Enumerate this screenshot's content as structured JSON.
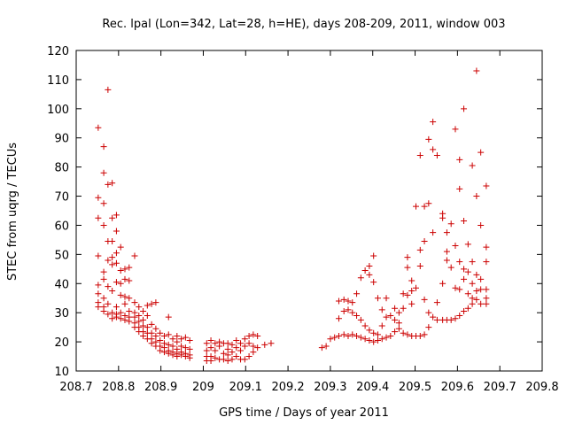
{
  "chart_data": {
    "type": "scatter",
    "title": "Rec. lpal (Lon=342, Lat=28, h=HE), days 208-209, 2011, window 003",
    "xlabel": "GPS time / Days of year 2011",
    "ylabel": "STEC from uqrg / TECUs",
    "xlim": [
      208.7,
      209.8
    ],
    "ylim": [
      10,
      120
    ],
    "xticks": [
      208.7,
      208.8,
      208.9,
      209,
      209.1,
      209.2,
      209.3,
      209.4,
      209.5,
      209.6,
      209.7,
      209.8
    ],
    "xtick_labels": [
      "208.7",
      "208.8",
      "208.9",
      "209",
      "209.1",
      "209.2",
      "209.3",
      "209.4",
      "209.5",
      "209.6",
      "209.7",
      "209.8"
    ],
    "yticks": [
      10,
      20,
      30,
      40,
      50,
      60,
      70,
      80,
      90,
      100,
      110,
      120
    ],
    "ytick_labels": [
      "10",
      "20",
      "30",
      "40",
      "50",
      "60",
      "70",
      "80",
      "90",
      "100",
      "110",
      "120"
    ],
    "grid": false,
    "marker": "+",
    "color": "#cc0000",
    "points": [
      [
        208.752,
        93.5
      ],
      [
        208.752,
        69.5
      ],
      [
        208.752,
        62.5
      ],
      [
        208.752,
        49.5
      ],
      [
        208.752,
        39.5
      ],
      [
        208.752,
        36.5
      ],
      [
        208.752,
        33.5
      ],
      [
        208.752,
        32.0
      ],
      [
        208.765,
        87.0
      ],
      [
        208.765,
        78.0
      ],
      [
        208.765,
        67.5
      ],
      [
        208.765,
        60.0
      ],
      [
        208.765,
        44.0
      ],
      [
        208.765,
        41.5
      ],
      [
        208.765,
        35.0
      ],
      [
        208.765,
        32.0
      ],
      [
        208.765,
        30.5
      ],
      [
        208.775,
        106.5
      ],
      [
        208.775,
        74.0
      ],
      [
        208.775,
        54.5
      ],
      [
        208.775,
        48.0
      ],
      [
        208.775,
        39.0
      ],
      [
        208.775,
        33.0
      ],
      [
        208.775,
        29.5
      ],
      [
        208.785,
        74.5
      ],
      [
        208.785,
        62.5
      ],
      [
        208.785,
        54.5
      ],
      [
        208.785,
        49.0
      ],
      [
        208.785,
        46.5
      ],
      [
        208.785,
        37.5
      ],
      [
        208.785,
        30.0
      ],
      [
        208.785,
        28.0
      ],
      [
        208.795,
        63.5
      ],
      [
        208.795,
        58.0
      ],
      [
        208.795,
        50.5
      ],
      [
        208.795,
        47.0
      ],
      [
        208.795,
        40.5
      ],
      [
        208.795,
        32.0
      ],
      [
        208.795,
        29.5
      ],
      [
        208.795,
        28.5
      ],
      [
        208.805,
        52.5
      ],
      [
        208.805,
        44.5
      ],
      [
        208.805,
        40.0
      ],
      [
        208.805,
        36.0
      ],
      [
        208.805,
        30.0
      ],
      [
        208.805,
        28.0
      ],
      [
        208.815,
        45.0
      ],
      [
        208.815,
        41.5
      ],
      [
        208.815,
        35.5
      ],
      [
        208.815,
        33.0
      ],
      [
        208.815,
        29.0
      ],
      [
        208.815,
        27.5
      ],
      [
        208.825,
        45.5
      ],
      [
        208.825,
        41.0
      ],
      [
        208.825,
        35.0
      ],
      [
        208.825,
        30.5
      ],
      [
        208.825,
        28.5
      ],
      [
        208.825,
        27.0
      ],
      [
        208.838,
        49.5
      ],
      [
        208.838,
        33.5
      ],
      [
        208.838,
        30.0
      ],
      [
        208.838,
        28.5
      ],
      [
        208.838,
        26.5
      ],
      [
        208.838,
        25.0
      ],
      [
        208.848,
        32.0
      ],
      [
        208.848,
        29.0
      ],
      [
        208.848,
        27.0
      ],
      [
        208.848,
        25.0
      ],
      [
        208.848,
        23.5
      ],
      [
        208.858,
        30.5
      ],
      [
        208.858,
        27.5
      ],
      [
        208.858,
        25.5
      ],
      [
        208.858,
        23.5
      ],
      [
        208.858,
        22.0
      ],
      [
        208.868,
        32.5
      ],
      [
        208.868,
        29.0
      ],
      [
        208.868,
        25.0
      ],
      [
        208.868,
        23.0
      ],
      [
        208.868,
        21.0
      ],
      [
        208.878,
        33.0
      ],
      [
        208.878,
        26.0
      ],
      [
        208.878,
        23.0
      ],
      [
        208.878,
        21.0
      ],
      [
        208.878,
        19.5
      ],
      [
        208.888,
        33.5
      ],
      [
        208.888,
        24.5
      ],
      [
        208.888,
        22.0
      ],
      [
        208.888,
        20.0
      ],
      [
        208.888,
        18.5
      ],
      [
        208.898,
        23.0
      ],
      [
        208.898,
        20.5
      ],
      [
        208.898,
        18.5
      ],
      [
        208.898,
        17.0
      ],
      [
        208.908,
        22.0
      ],
      [
        208.908,
        19.5
      ],
      [
        208.908,
        18.0
      ],
      [
        208.908,
        16.5
      ],
      [
        208.918,
        28.5
      ],
      [
        208.918,
        22.5
      ],
      [
        208.918,
        19.0
      ],
      [
        208.918,
        17.0
      ],
      [
        208.918,
        16.0
      ],
      [
        208.928,
        21.0
      ],
      [
        208.928,
        18.5
      ],
      [
        208.928,
        16.5
      ],
      [
        208.928,
        15.5
      ],
      [
        208.938,
        22.0
      ],
      [
        208.938,
        20.0
      ],
      [
        208.938,
        17.5
      ],
      [
        208.938,
        16.0
      ],
      [
        208.938,
        15.0
      ],
      [
        208.948,
        21.0
      ],
      [
        208.948,
        18.5
      ],
      [
        208.948,
        16.5
      ],
      [
        208.948,
        15.5
      ],
      [
        208.958,
        21.5
      ],
      [
        208.958,
        18.0
      ],
      [
        208.958,
        16.0
      ],
      [
        208.958,
        15.0
      ],
      [
        208.968,
        20.5
      ],
      [
        208.968,
        17.5
      ],
      [
        208.968,
        15.5
      ],
      [
        208.968,
        14.5
      ],
      [
        209.008,
        19.5
      ],
      [
        209.008,
        17.0
      ],
      [
        209.008,
        15.0
      ],
      [
        209.008,
        13.5
      ],
      [
        209.018,
        20.5
      ],
      [
        209.018,
        18.0
      ],
      [
        209.018,
        15.0
      ],
      [
        209.018,
        13.5
      ],
      [
        209.028,
        19.5
      ],
      [
        209.028,
        17.0
      ],
      [
        209.028,
        14.5
      ],
      [
        209.038,
        20.0
      ],
      [
        209.038,
        18.5
      ],
      [
        209.038,
        14.0
      ],
      [
        209.048,
        19.5
      ],
      [
        209.048,
        16.0
      ],
      [
        209.048,
        14.0
      ],
      [
        209.058,
        19.5
      ],
      [
        209.058,
        17.5
      ],
      [
        209.058,
        15.5
      ],
      [
        209.058,
        13.5
      ],
      [
        209.068,
        19.0
      ],
      [
        209.068,
        16.5
      ],
      [
        209.068,
        14.0
      ],
      [
        209.078,
        20.5
      ],
      [
        209.078,
        18.0
      ],
      [
        209.078,
        15.0
      ],
      [
        209.088,
        19.5
      ],
      [
        209.088,
        17.0
      ],
      [
        209.088,
        14.0
      ],
      [
        209.098,
        21.0
      ],
      [
        209.098,
        18.5
      ],
      [
        209.098,
        14.0
      ],
      [
        209.108,
        22.0
      ],
      [
        209.108,
        19.5
      ],
      [
        209.108,
        15.0
      ],
      [
        209.118,
        22.5
      ],
      [
        209.118,
        18.5
      ],
      [
        209.118,
        16.5
      ],
      [
        209.128,
        22.0
      ],
      [
        209.128,
        18.0
      ],
      [
        209.145,
        19.0
      ],
      [
        209.16,
        19.5
      ],
      [
        209.28,
        18.0
      ],
      [
        209.29,
        18.5
      ],
      [
        209.3,
        21.0
      ],
      [
        209.31,
        21.5
      ],
      [
        209.32,
        22.0
      ],
      [
        209.32,
        28.0
      ],
      [
        209.32,
        34.0
      ],
      [
        209.332,
        22.5
      ],
      [
        209.332,
        30.5
      ],
      [
        209.332,
        34.5
      ],
      [
        209.342,
        22.0
      ],
      [
        209.342,
        31.0
      ],
      [
        209.342,
        34.0
      ],
      [
        209.352,
        22.5
      ],
      [
        209.352,
        30.0
      ],
      [
        209.352,
        33.5
      ],
      [
        209.362,
        22.0
      ],
      [
        209.362,
        29.0
      ],
      [
        209.362,
        36.5
      ],
      [
        209.372,
        21.5
      ],
      [
        209.372,
        27.5
      ],
      [
        209.372,
        42.0
      ],
      [
        209.382,
        21.0
      ],
      [
        209.382,
        25.5
      ],
      [
        209.382,
        44.5
      ],
      [
        209.392,
        20.5
      ],
      [
        209.392,
        24.0
      ],
      [
        209.392,
        46.0
      ],
      [
        209.392,
        43.0
      ],
      [
        209.402,
        20.0
      ],
      [
        209.402,
        23.0
      ],
      [
        209.402,
        40.5
      ],
      [
        209.402,
        49.5
      ],
      [
        209.412,
        20.5
      ],
      [
        209.412,
        22.5
      ],
      [
        209.412,
        35.0
      ],
      [
        209.422,
        21.0
      ],
      [
        209.422,
        25.5
      ],
      [
        209.422,
        31.0
      ],
      [
        209.432,
        21.5
      ],
      [
        209.432,
        28.5
      ],
      [
        209.432,
        35.0
      ],
      [
        209.442,
        22.0
      ],
      [
        209.442,
        29.0
      ],
      [
        209.452,
        23.5
      ],
      [
        209.452,
        27.5
      ],
      [
        209.452,
        31.5
      ],
      [
        209.462,
        24.5
      ],
      [
        209.462,
        26.5
      ],
      [
        209.462,
        30.0
      ],
      [
        209.472,
        23.0
      ],
      [
        209.472,
        31.5
      ],
      [
        209.472,
        36.5
      ],
      [
        209.482,
        22.5
      ],
      [
        209.482,
        36.0
      ],
      [
        209.482,
        45.5
      ],
      [
        209.482,
        49.0
      ],
      [
        209.492,
        22.0
      ],
      [
        209.492,
        33.0
      ],
      [
        209.492,
        37.5
      ],
      [
        209.492,
        41.0
      ],
      [
        209.502,
        22.0
      ],
      [
        209.502,
        38.5
      ],
      [
        209.502,
        66.5
      ],
      [
        209.512,
        22.0
      ],
      [
        209.512,
        46.0
      ],
      [
        209.512,
        51.5
      ],
      [
        209.512,
        84.0
      ],
      [
        209.522,
        22.5
      ],
      [
        209.522,
        34.5
      ],
      [
        209.522,
        54.5
      ],
      [
        209.522,
        66.5
      ],
      [
        209.532,
        25.0
      ],
      [
        209.532,
        30.0
      ],
      [
        209.532,
        67.5
      ],
      [
        209.532,
        89.5
      ],
      [
        209.542,
        28.5
      ],
      [
        209.542,
        57.5
      ],
      [
        209.542,
        86.0
      ],
      [
        209.542,
        95.5
      ],
      [
        209.552,
        27.5
      ],
      [
        209.552,
        33.5
      ],
      [
        209.552,
        84.0
      ],
      [
        209.565,
        27.5
      ],
      [
        209.565,
        40.0
      ],
      [
        209.565,
        62.5
      ],
      [
        209.565,
        64.0
      ],
      [
        209.575,
        27.5
      ],
      [
        209.575,
        48.0
      ],
      [
        209.575,
        51.0
      ],
      [
        209.575,
        57.5
      ],
      [
        209.585,
        27.5
      ],
      [
        209.585,
        45.5
      ],
      [
        209.585,
        60.5
      ],
      [
        209.595,
        28.0
      ],
      [
        209.595,
        38.5
      ],
      [
        209.595,
        53.0
      ],
      [
        209.595,
        93.0
      ],
      [
        209.605,
        29.0
      ],
      [
        209.605,
        38.0
      ],
      [
        209.605,
        47.5
      ],
      [
        209.605,
        72.5
      ],
      [
        209.605,
        82.5
      ],
      [
        209.615,
        30.5
      ],
      [
        209.615,
        41.5
      ],
      [
        209.615,
        45.0
      ],
      [
        209.615,
        61.5
      ],
      [
        209.615,
        100.0
      ],
      [
        209.625,
        31.5
      ],
      [
        209.625,
        36.5
      ],
      [
        209.625,
        44.0
      ],
      [
        209.625,
        53.5
      ],
      [
        209.635,
        33.0
      ],
      [
        209.635,
        35.0
      ],
      [
        209.635,
        40.0
      ],
      [
        209.635,
        47.5
      ],
      [
        209.635,
        80.5
      ],
      [
        209.645,
        34.5
      ],
      [
        209.645,
        37.5
      ],
      [
        209.645,
        43.0
      ],
      [
        209.645,
        70.0
      ],
      [
        209.645,
        113.0
      ],
      [
        209.655,
        33.0
      ],
      [
        209.655,
        38.0
      ],
      [
        209.655,
        41.5
      ],
      [
        209.655,
        60.0
      ],
      [
        209.655,
        85.0
      ],
      [
        209.668,
        33.0
      ],
      [
        209.668,
        35.0
      ],
      [
        209.668,
        38.0
      ],
      [
        209.668,
        47.5
      ],
      [
        209.668,
        52.5
      ],
      [
        209.668,
        73.5
      ]
    ]
  }
}
